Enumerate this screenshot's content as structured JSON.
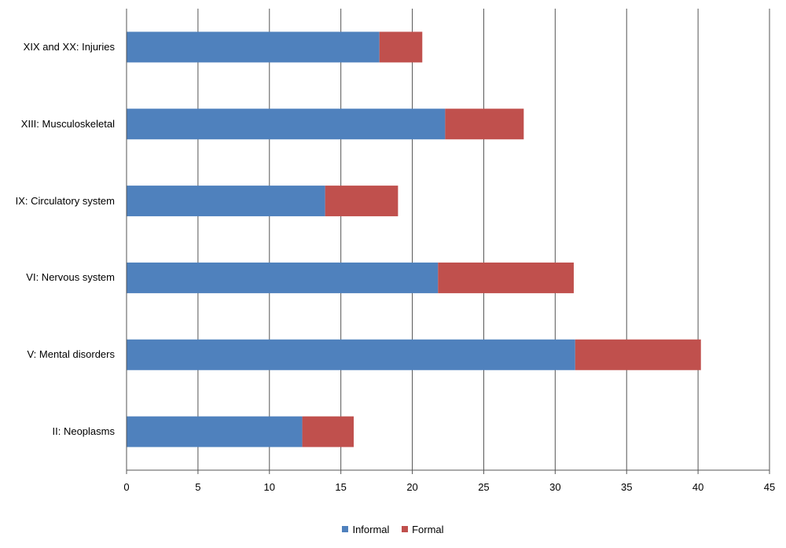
{
  "chart_data": {
    "type": "bar",
    "orientation": "horizontal",
    "stacked": true,
    "title": "",
    "xlabel": "",
    "ylabel": "",
    "categories": [
      "XIX and XX: Injuries",
      "XIII: Musculoskeletal",
      "IX: Circulatory system",
      "VI: Nervous system",
      "V: Mental disorders",
      "II: Neoplasms"
    ],
    "series": [
      {
        "name": "Informal",
        "color": "#4f81bd",
        "values": [
          17.7,
          22.3,
          13.9,
          21.8,
          31.4,
          12.3
        ]
      },
      {
        "name": "Formal",
        "color": "#c0504d",
        "values": [
          3.0,
          5.5,
          5.1,
          9.5,
          8.8,
          3.6
        ]
      }
    ],
    "xlim": [
      0,
      45
    ],
    "xticks": [
      0,
      5,
      10,
      15,
      20,
      25,
      30,
      35,
      40,
      45
    ],
    "grid": {
      "vertical": true,
      "horizontal": false
    },
    "legend": {
      "position": "bottom",
      "entries": [
        "Informal",
        "Formal"
      ]
    }
  }
}
